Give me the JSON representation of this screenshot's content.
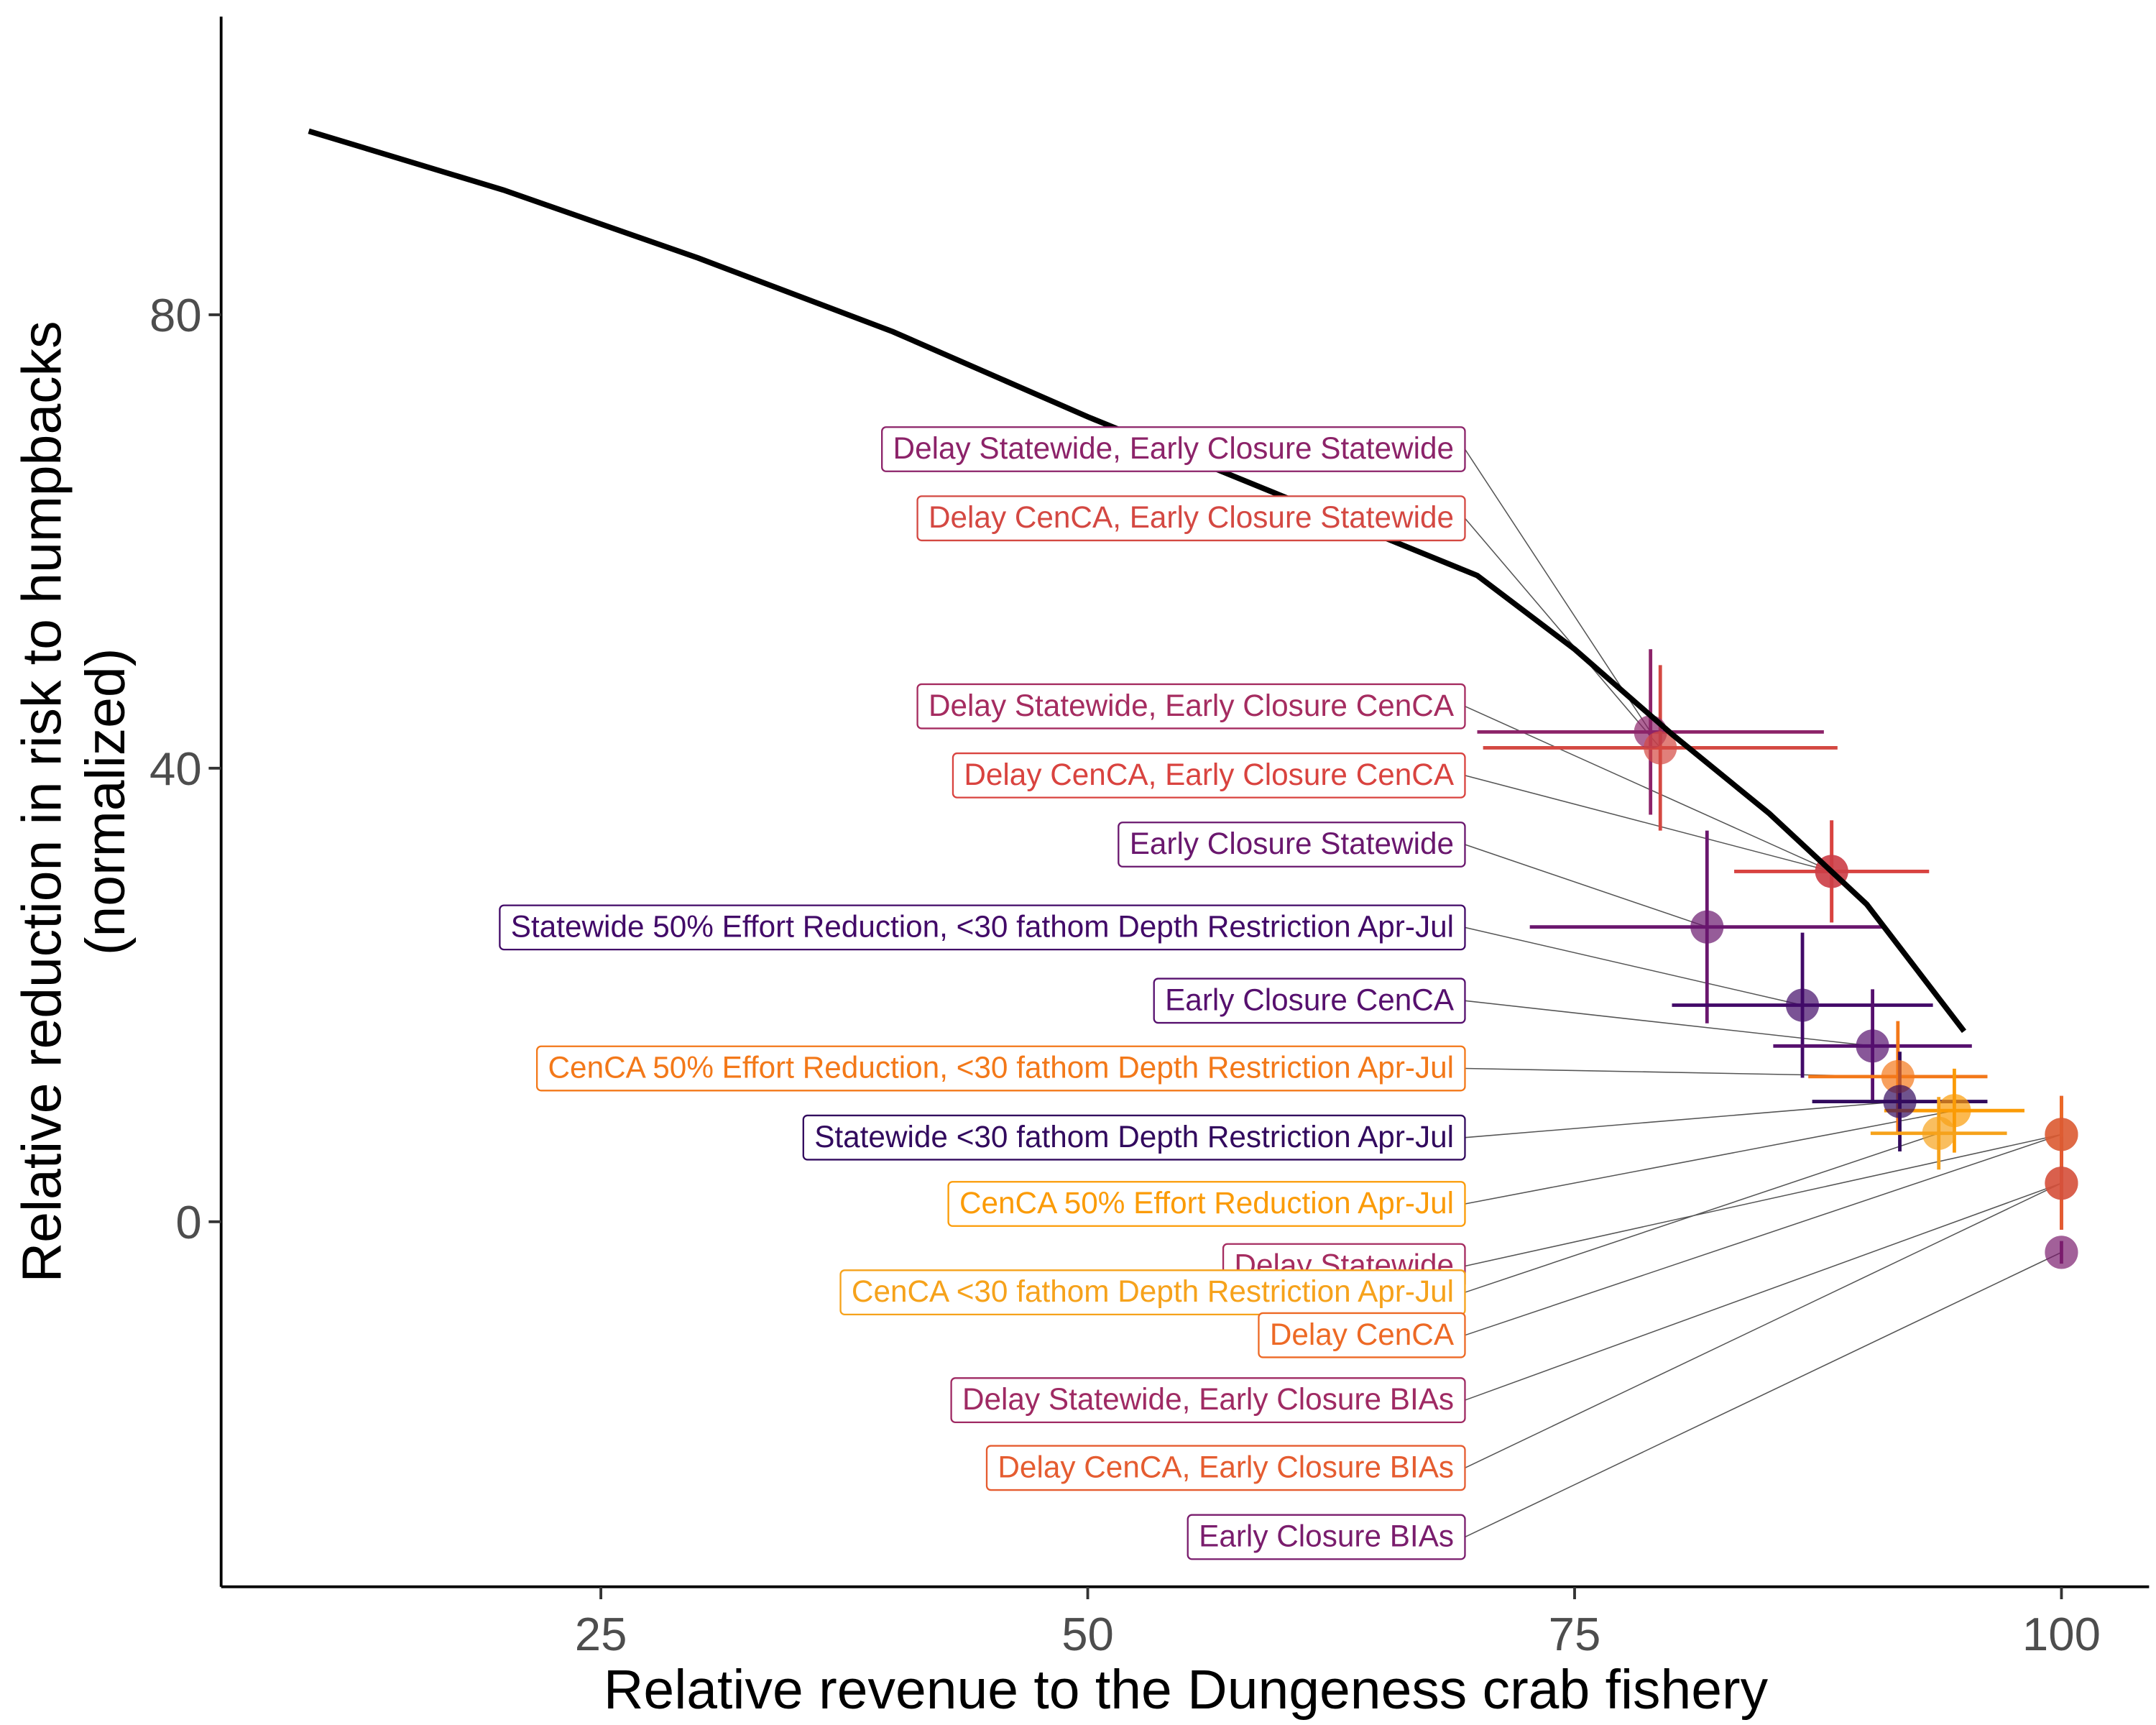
{
  "chart_data": {
    "type": "scatter",
    "x_label": "Relative revenue to the Dungeness crab fishery",
    "y_label": [
      "Relative reduction in risk to humpbacks",
      "(normalized)"
    ],
    "xlim": [
      5.5,
      104.5
    ],
    "ylim": [
      -32.2,
      106.3
    ],
    "xticks": [
      25,
      50,
      75,
      100
    ],
    "yticks": [
      0,
      40,
      80
    ],
    "curve": {
      "color": "#000000",
      "x": [
        10,
        20,
        30,
        40,
        50,
        60,
        70,
        75,
        80,
        85,
        90,
        95
      ],
      "y": [
        96.2,
        91,
        85,
        78.5,
        71,
        64,
        57,
        50.5,
        43,
        36,
        28,
        16.8
      ]
    },
    "series": [
      {
        "name": "Delay Statewide, Early Closure Statewide",
        "color": "#8c2369",
        "x": 78.9,
        "y": 43.2,
        "x_error": 8.9,
        "y_error": 7.3
      },
      {
        "name": "Delay CenCA, Early Closure Statewide",
        "color": "#d44842",
        "x": 79.4,
        "y": 41.8,
        "x_error": 9.1,
        "y_error": 7.3
      },
      {
        "name": "Delay Statewide, Early Closure CenCA",
        "color": "#a52c60",
        "x": 88.2,
        "y": 30.9,
        "x_error": 5,
        "y_error": 4.5
      },
      {
        "name": "Delay CenCA, Early Closure CenCA",
        "color": "#d9433f",
        "x": 88.2,
        "y": 30.9,
        "x_error": 5,
        "y_error": 4.5
      },
      {
        "name": "Early Closure Statewide",
        "color": "#6a176e",
        "x": 81.8,
        "y": 26.0,
        "x_error": 9.1,
        "y_error": 8.5
      },
      {
        "name": "Statewide 50% Effort Reduction, <30 fathom Depth Restriction Apr-Jul",
        "color": "#420a68",
        "x": 86.7,
        "y": 19.1,
        "x_error": 6.7,
        "y_error": 6.4
      },
      {
        "name": "Early Closure CenCA",
        "color": "#56106e",
        "x": 90.3,
        "y": 15.5,
        "x_error": 5.1,
        "y_error": 5
      },
      {
        "name": "CenCA 50% Effort Reduction, <30 fathom Depth Restriction Apr-Jul",
        "color": "#f37819",
        "x": 91.6,
        "y": 12.8,
        "x_error": 4.6,
        "y_error": 4.9
      },
      {
        "name": "Statewide <30 fathom Depth Restriction Apr-Jul",
        "color": "#320a5e",
        "x": 91.7,
        "y": 10.6,
        "x_error": 4.5,
        "y_error": 4.4
      },
      {
        "name": "CenCA 50% Effort Reduction Apr-Jul",
        "color": "#fb9b06",
        "x": 94.5,
        "y": 9.8,
        "x_error": 3.6,
        "y_error": 3.7
      },
      {
        "name": "Delay Statewide",
        "color": "#a52c60",
        "x": 100,
        "y": 7.7,
        "x_error": null,
        "y_error": 3.4
      },
      {
        "name": "CenCA <30 fathom Depth Restriction Apr-Jul",
        "color": "#f6a21b",
        "x": 93.7,
        "y": 7.8,
        "x_error": 3.5,
        "y_error": 3.2
      },
      {
        "name": "Delay CenCA",
        "color": "#ed6925",
        "x": 100,
        "y": 7.7,
        "x_error": null,
        "y_error": 3.4
      },
      {
        "name": "Delay Statewide, Early Closure BIAs",
        "color": "#9f2a63",
        "x": 100,
        "y": 3.4,
        "x_error": null,
        "y_error": 4.1
      },
      {
        "name": "Delay CenCA, Early Closure BIAs",
        "color": "#e55c30",
        "x": 100,
        "y": 3.4,
        "x_error": null,
        "y_error": 4.1
      },
      {
        "name": "Early Closure BIAs",
        "color": "#7a1d6d",
        "x": 100,
        "y": -2.7,
        "x_error": null,
        "y_error": 1
      }
    ]
  }
}
